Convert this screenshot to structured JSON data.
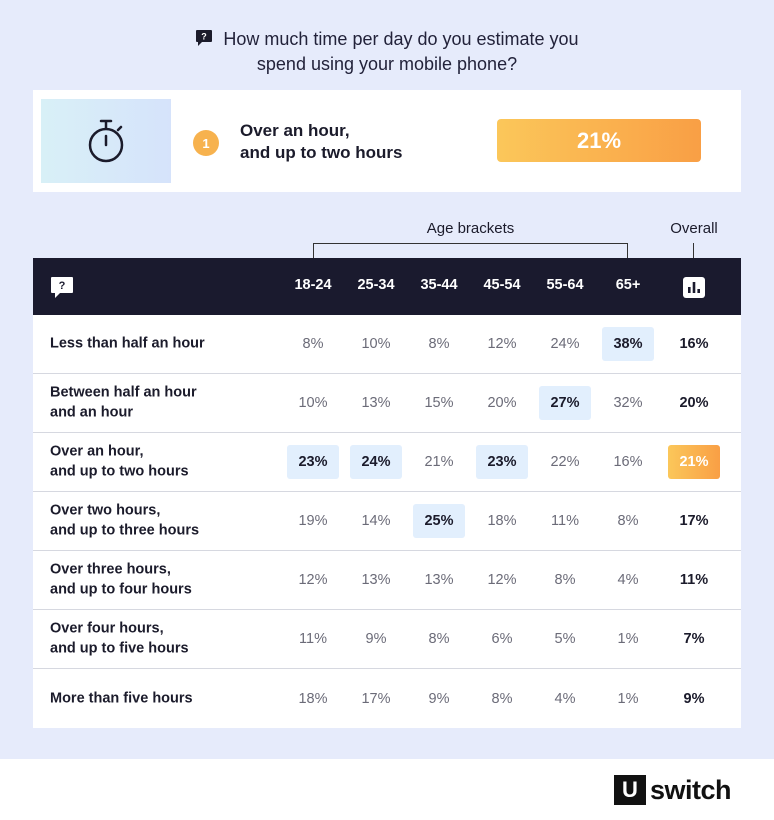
{
  "question": {
    "line1": "How much time per day do you estimate you",
    "line2": "spend using your mobile phone?"
  },
  "highlight": {
    "rank": "1",
    "label_line1": "Over an hour,",
    "label_line2": "and up to two hours",
    "value": "21%",
    "icon": "stopwatch-icon"
  },
  "table_header": {
    "age_brackets_label": "Age brackets",
    "overall_label": "Overall",
    "columns": [
      "18-24",
      "25-34",
      "35-44",
      "45-54",
      "55-64",
      "65+"
    ]
  },
  "colors": {
    "header_bg": "#1a1a2e",
    "cell_highlight": "#e2effd",
    "accent_gradient_start": "#fbc75a",
    "accent_gradient_end": "#f99f45",
    "page_bg": "#e6ebfb"
  },
  "chart_data": {
    "type": "table",
    "categories": [
      "18-24",
      "25-34",
      "35-44",
      "45-54",
      "55-64",
      "65+"
    ],
    "rows": [
      {
        "line1": "Less than half an hour",
        "line2": "",
        "values": [
          "8%",
          "10%",
          "8%",
          "12%",
          "24%",
          "38%"
        ],
        "highlight": [
          5
        ],
        "overall": "16%",
        "overall_highlight": false
      },
      {
        "line1": "Between half an hour",
        "line2": "and an hour",
        "values": [
          "10%",
          "13%",
          "15%",
          "20%",
          "27%",
          "32%"
        ],
        "highlight": [
          4
        ],
        "overall": "20%",
        "overall_highlight": false
      },
      {
        "line1": "Over an hour,",
        "line2": "and up to two hours",
        "values": [
          "23%",
          "24%",
          "21%",
          "23%",
          "22%",
          "16%"
        ],
        "highlight": [
          0,
          1,
          3
        ],
        "overall": "21%",
        "overall_highlight": true
      },
      {
        "line1": "Over two hours,",
        "line2": "and up to three hours",
        "values": [
          "19%",
          "14%",
          "25%",
          "18%",
          "11%",
          "8%"
        ],
        "highlight": [
          2
        ],
        "overall": "17%",
        "overall_highlight": false
      },
      {
        "line1": "Over three hours,",
        "line2": "and up to four hours",
        "values": [
          "12%",
          "13%",
          "13%",
          "12%",
          "8%",
          "4%"
        ],
        "highlight": [],
        "overall": "11%",
        "overall_highlight": false
      },
      {
        "line1": "Over four hours,",
        "line2": "and up to five hours",
        "values": [
          "11%",
          "9%",
          "8%",
          "6%",
          "5%",
          "1%"
        ],
        "highlight": [],
        "overall": "7%",
        "overall_highlight": false
      },
      {
        "line1": "More than five hours",
        "line2": "",
        "values": [
          "18%",
          "17%",
          "9%",
          "8%",
          "4%",
          "1%"
        ],
        "highlight": [],
        "overall": "9%",
        "overall_highlight": false
      }
    ]
  },
  "footer": {
    "logo_letter": "U",
    "logo_word": "switch"
  }
}
